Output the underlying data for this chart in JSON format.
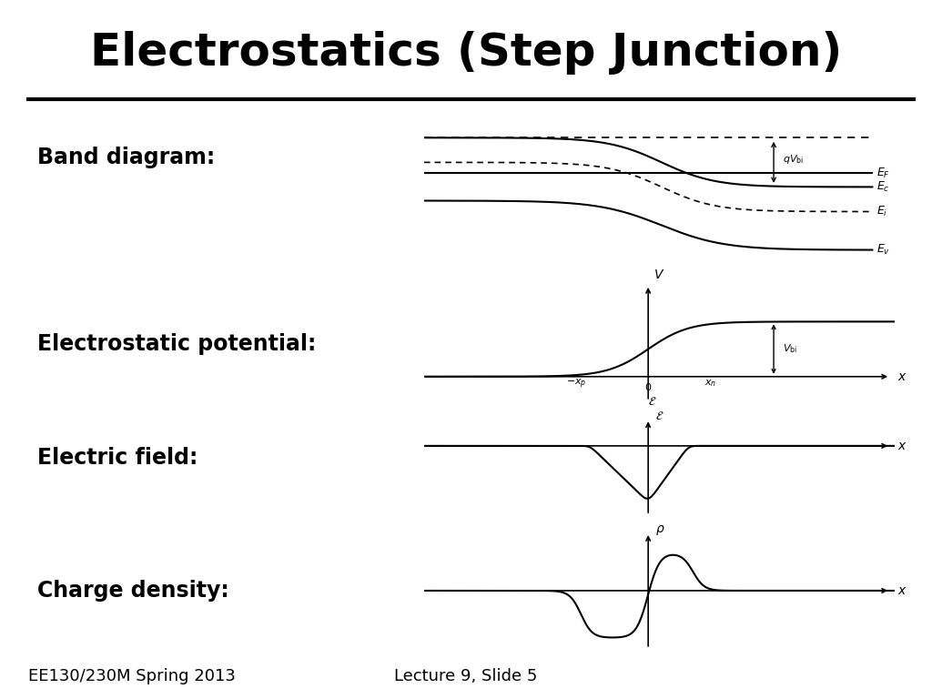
{
  "title": "Electrostatics (Step Junction)",
  "title_fontsize": 36,
  "title_fontweight": "bold",
  "bg_color": "#ffffff",
  "text_color": "#000000",
  "footer_left": "EE130/230M Spring 2013",
  "footer_right": "Lecture 9, Slide 5",
  "footer_fontsize": 13,
  "label_band": "Band diagram:",
  "label_potential": "Electrostatic potential:",
  "label_efield": "Electric field:",
  "label_charge": "Charge density:",
  "label_fontsize": 17,
  "label_fontweight": "bold",
  "line_color": "#000000"
}
